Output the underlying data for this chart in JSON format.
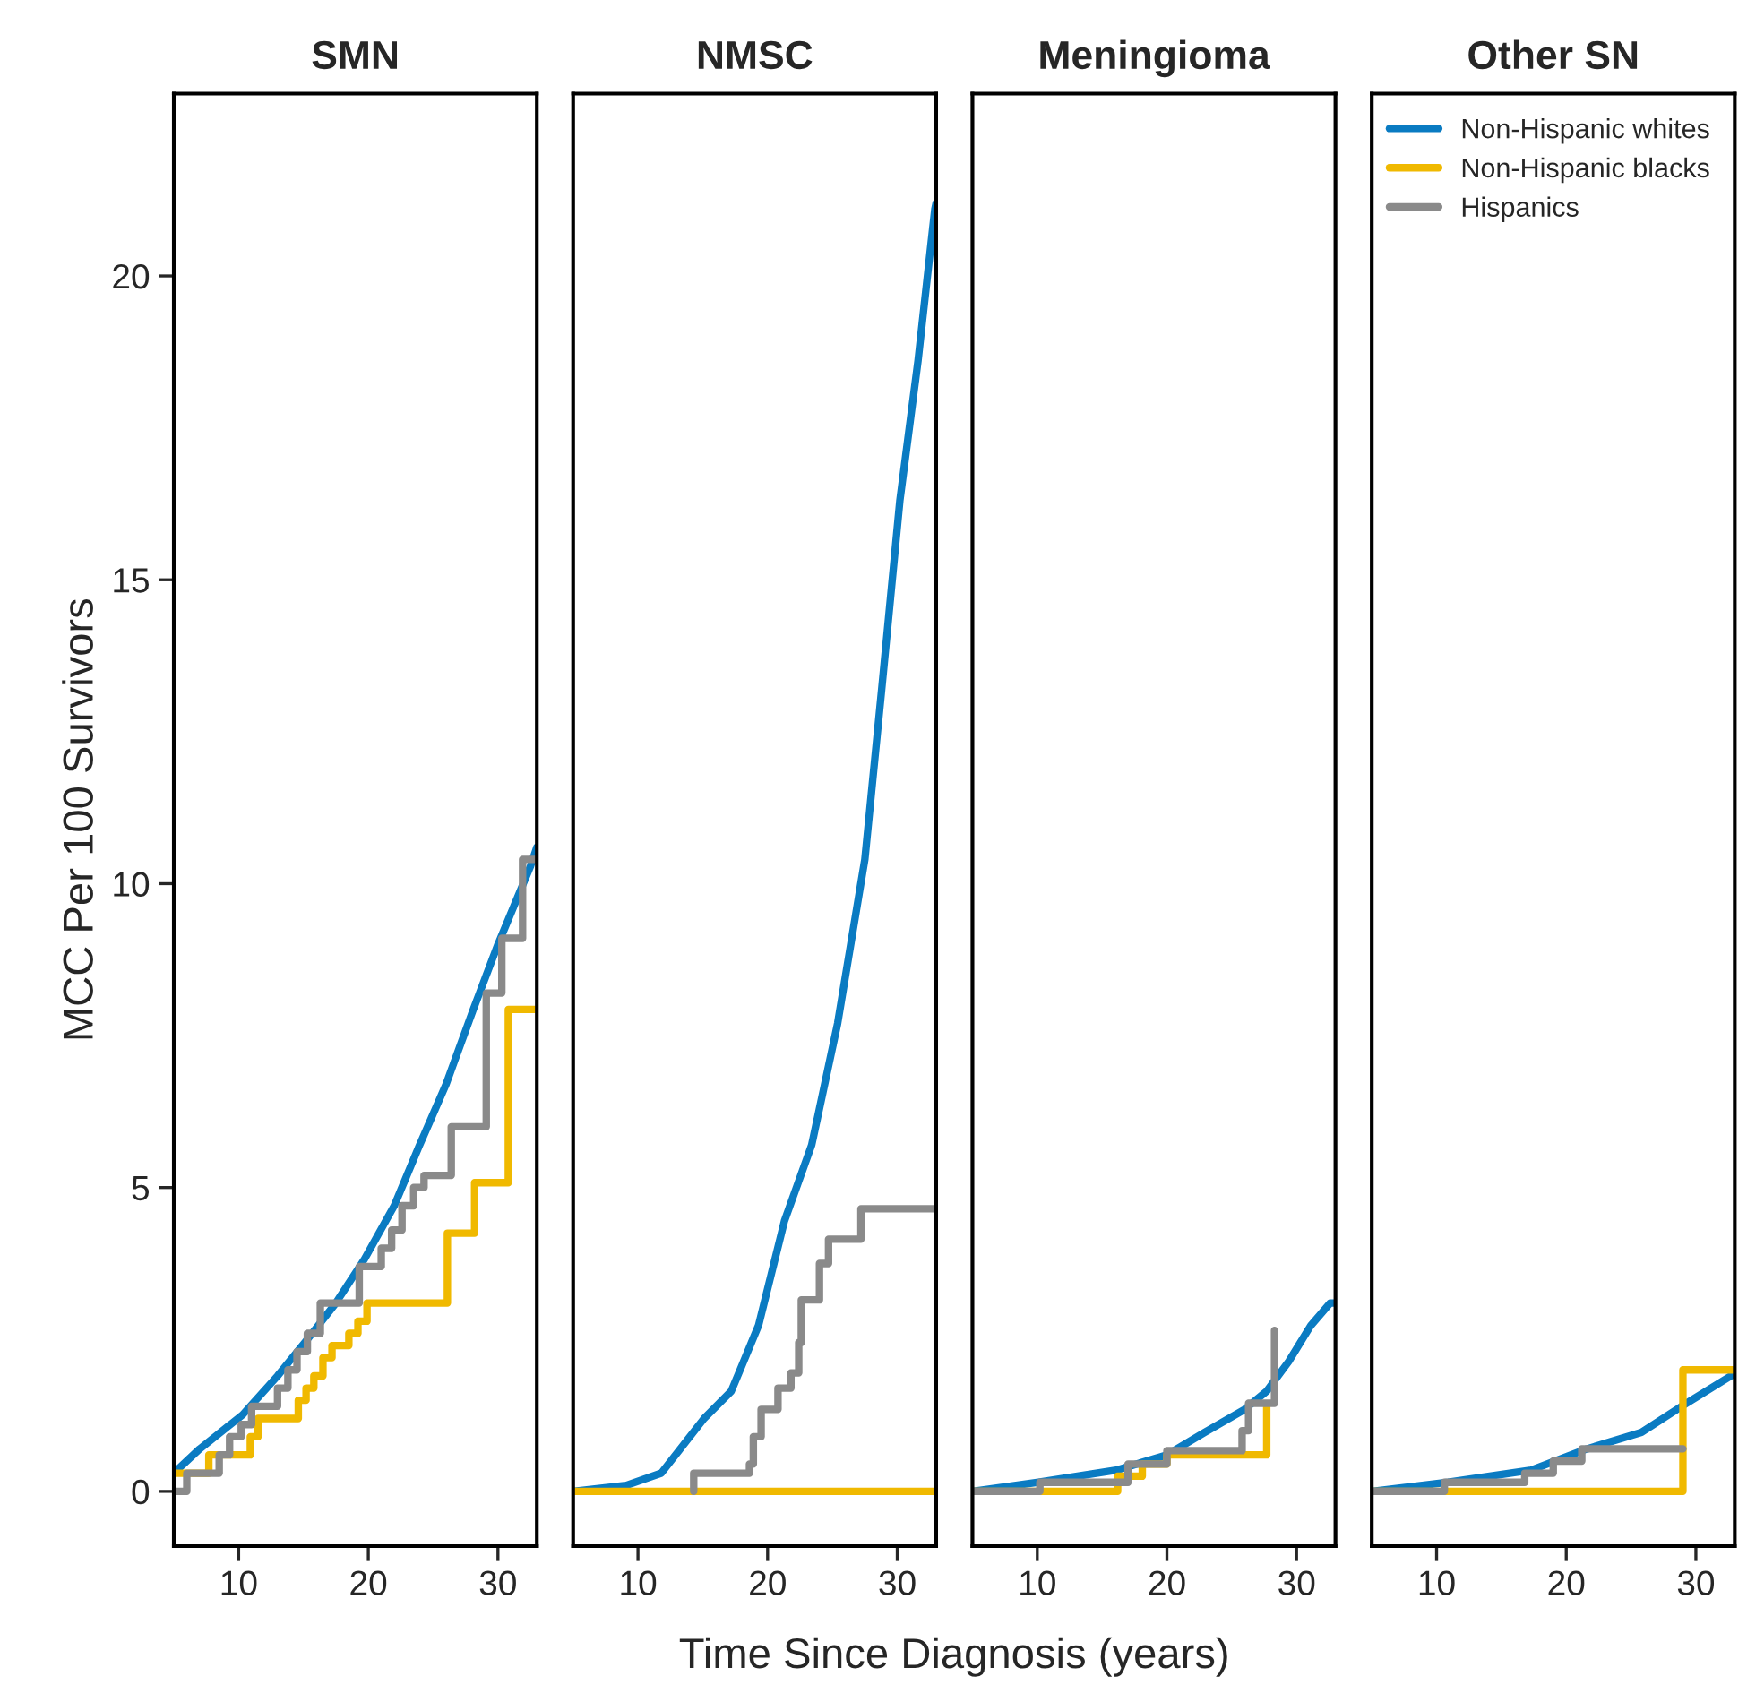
{
  "chart_data": [
    {
      "type": "step",
      "title": "SMN",
      "xlabel": "Time Since Diagnosis (years)",
      "ylabel": "MCC Per 100 Survivors",
      "xlim": [
        5,
        33
      ],
      "ylim": [
        -0.9,
        23
      ],
      "xticks": [
        10,
        20,
        30
      ],
      "yticks": [
        0,
        5,
        10,
        15,
        20
      ],
      "grid": false,
      "legend": false,
      "line_style": "solid",
      "series": [
        {
          "type": "line",
          "color": "#0a7bc2",
          "x": [
            5,
            7,
            10.3,
            13,
            15.4,
            17.5,
            19.7,
            22,
            23.9,
            26,
            28.1,
            30,
            32.5,
            33
          ],
          "values": [
            0.3,
            0.7,
            1.26,
            1.9,
            2.53,
            3.1,
            3.82,
            4.7,
            5.67,
            6.7,
            7.93,
            9.0,
            10.28,
            10.6
          ]
        },
        {
          "color": "#f0b900",
          "x": [
            5,
            7.7,
            10.9,
            11.5,
            14.6,
            15.2,
            15.8,
            16.5,
            17.2,
            18.5,
            19.2,
            19.9,
            26.1,
            28.2,
            30.8,
            33
          ],
          "values": [
            0.3,
            0.6,
            0.9,
            1.2,
            1.5,
            1.7,
            1.9,
            2.2,
            2.4,
            2.6,
            2.8,
            3.1,
            4.25,
            5.08,
            7.93,
            7.93
          ]
        },
        {
          "color": "#8a8a8a",
          "x": [
            5,
            6,
            8.5,
            9.3,
            10.2,
            11,
            13,
            13.8,
            14.5,
            15.3,
            16.3,
            19.3,
            21,
            21.8,
            22.6,
            23.5,
            24.3,
            26.4,
            29.1,
            30.3,
            31.9,
            33
          ],
          "values": [
            0,
            0.3,
            0.6,
            0.9,
            1.1,
            1.4,
            1.7,
            2.0,
            2.3,
            2.6,
            3.1,
            3.7,
            4.0,
            4.3,
            4.7,
            5.0,
            5.2,
            6.0,
            8.2,
            9.1,
            10.4,
            10.4
          ]
        }
      ]
    },
    {
      "type": "step",
      "title": "NMSC",
      "xlim": [
        5,
        33
      ],
      "ylim": [
        -0.9,
        23
      ],
      "xticks": [
        10,
        20,
        30
      ],
      "yticks": [
        0,
        5,
        10,
        15,
        20
      ],
      "tick_labels": "x",
      "grid": false,
      "legend": false,
      "line_style": "solid",
      "series": [
        {
          "type": "line",
          "color": "#0a7bc2",
          "x": [
            5,
            9.1,
            11.8,
            15.1,
            17.2,
            19.3,
            21.3,
            23.4,
            25.4,
            27.5,
            28.8,
            30.2,
            31.6,
            32.9,
            33
          ],
          "values": [
            0,
            0.1,
            0.3,
            1.2,
            1.65,
            2.73,
            4.45,
            5.7,
            7.7,
            10.4,
            13.2,
            16.3,
            18.6,
            21.1,
            21.2
          ]
        },
        {
          "color": "#f0b900",
          "x": [
            5,
            33
          ],
          "values": [
            0,
            0
          ]
        },
        {
          "color": "#8a8a8a",
          "x": [
            14.3,
            14.3,
            18.6,
            18.9,
            19.5,
            20.8,
            21.8,
            22.4,
            22.6,
            24.0,
            24.7,
            27.2,
            33
          ],
          "values": [
            0,
            0.3,
            0.45,
            0.9,
            1.35,
            1.7,
            1.95,
            2.45,
            3.15,
            3.75,
            4.15,
            4.65,
            4.65
          ]
        }
      ]
    },
    {
      "type": "step",
      "title": "Meningioma",
      "xlim": [
        5,
        33
      ],
      "ylim": [
        -0.9,
        23
      ],
      "xticks": [
        10,
        20,
        30
      ],
      "yticks": [
        0,
        5,
        10,
        15,
        20
      ],
      "tick_labels": "x",
      "grid": false,
      "legend": false,
      "line_style": "solid",
      "series": [
        {
          "type": "line",
          "color": "#0a7bc2",
          "x": [
            5,
            10.1,
            16.1,
            20,
            22.9,
            26,
            27.7,
            29.4,
            31.1,
            32.6,
            33
          ],
          "values": [
            0,
            0.15,
            0.35,
            0.6,
            0.97,
            1.35,
            1.65,
            2.14,
            2.73,
            3.1,
            3.1
          ]
        },
        {
          "color": "#f0b900",
          "x": [
            5,
            16.2,
            18.1,
            20,
            27.7
          ],
          "values": [
            0,
            0.25,
            0.45,
            0.6,
            1.4
          ]
        },
        {
          "color": "#8a8a8a",
          "x": [
            5,
            10.2,
            17,
            20,
            25.8,
            26.3,
            28.3,
            28.3
          ],
          "values": [
            0,
            0.15,
            0.45,
            0.67,
            1.0,
            1.45,
            2.05,
            2.65
          ]
        }
      ]
    },
    {
      "type": "step",
      "title": "Other SN",
      "xlim": [
        5,
        33
      ],
      "ylim": [
        -0.9,
        23
      ],
      "xticks": [
        10,
        20,
        30
      ],
      "yticks": [
        0,
        5,
        10,
        15,
        20
      ],
      "tick_labels": "x",
      "grid": false,
      "legend": "top right",
      "line_style": "solid",
      "series": [
        {
          "type": "line",
          "name": "Non-Hispanic whites",
          "color": "#0a7bc2",
          "x": [
            5,
            10.9,
            17.3,
            21.6,
            25.8,
            28.9,
            32.7,
            33
          ],
          "values": [
            0,
            0.15,
            0.35,
            0.7,
            0.97,
            1.4,
            1.9,
            1.95
          ]
        },
        {
          "name": "Non-Hispanic blacks",
          "color": "#f0b900",
          "x": [
            5,
            29,
            33
          ],
          "values": [
            0,
            2.0,
            2.0
          ]
        },
        {
          "name": "Hispanics",
          "color": "#8a8a8a",
          "x": [
            5,
            10.6,
            16.8,
            19,
            21.2,
            29
          ],
          "values": [
            0,
            0.15,
            0.3,
            0.5,
            0.7,
            0.7
          ]
        }
      ]
    }
  ]
}
